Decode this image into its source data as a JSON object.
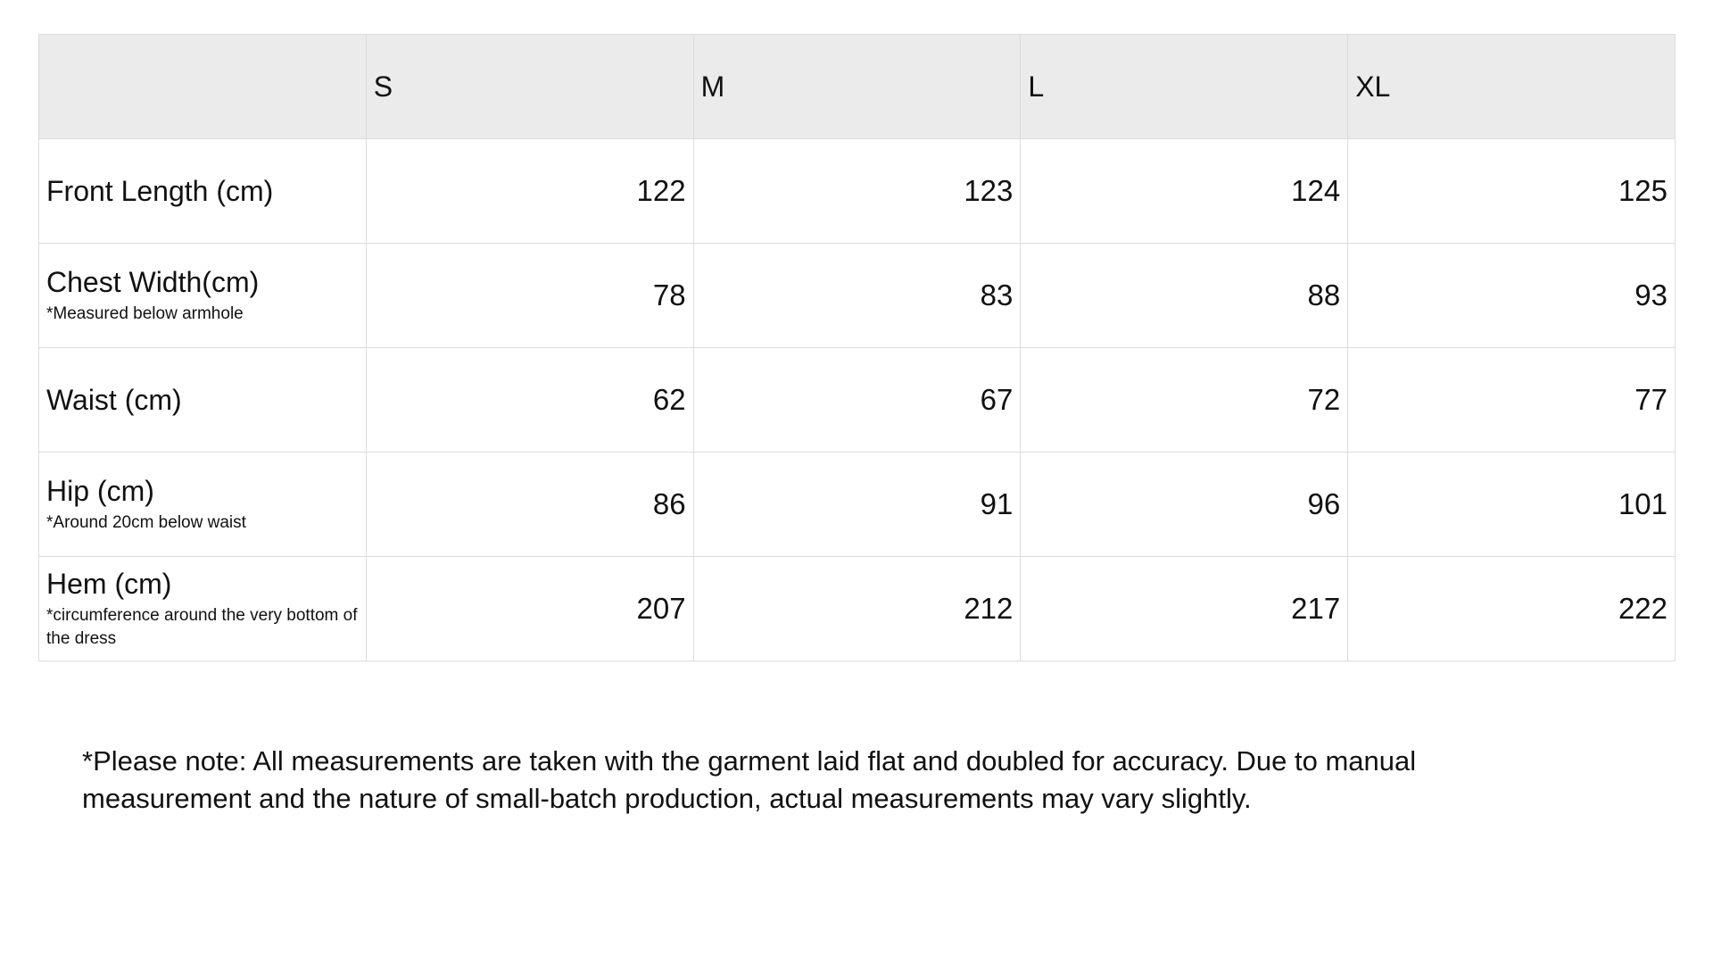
{
  "table": {
    "headers": [
      "",
      "S",
      "M",
      "L",
      "XL"
    ],
    "rows": [
      {
        "label": "Front Length (cm)",
        "note": "",
        "values": [
          "122",
          "123",
          "124",
          "125"
        ]
      },
      {
        "label": "Chest Width(cm)",
        "note": "*Measured below armhole",
        "values": [
          "78",
          "83",
          "88",
          "93"
        ]
      },
      {
        "label": "Waist (cm)",
        "note": "",
        "values": [
          "62",
          "67",
          "72",
          "77"
        ]
      },
      {
        "label": "Hip (cm)",
        "note": "*Around 20cm below waist",
        "values": [
          "86",
          "91",
          "96",
          "101"
        ]
      },
      {
        "label": "Hem (cm)",
        "note": "*circumference around the very bottom of the dress",
        "values": [
          "207",
          "212",
          "217",
          "222"
        ]
      }
    ],
    "header_bg": "#ebebeb"
  },
  "footnote": "*Please note: All measurements are taken with the garment laid flat and doubled for accuracy. Due to manual measurement and the nature of small-batch production, actual measurements may vary slightly."
}
